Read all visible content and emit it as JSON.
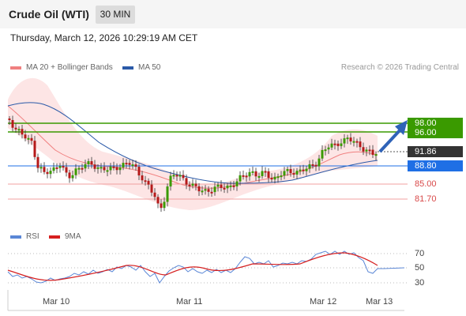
{
  "header": {
    "title": "Crude Oil (WTI)",
    "timeframe": "30 MIN"
  },
  "datetime": "Thursday, March 12, 2026 10:29:19 AM CET",
  "legend": {
    "ma20": {
      "label": "MA 20 + Bollinger Bands",
      "color": "#f08080"
    },
    "ma50": {
      "label": "MA 50",
      "color": "#2b5aa8"
    }
  },
  "credit": "Research © 2026 Trading Central",
  "chart_data": {
    "type": "line",
    "title": "Crude Oil (WTI)",
    "levels": {
      "resistance": [
        "98.00",
        "96.00"
      ],
      "current": "91.86",
      "pivot": "88.80",
      "support": [
        "85.00",
        "81.70"
      ]
    },
    "colors": {
      "resistance": "#3a9a00",
      "current": "#333333",
      "pivot": "#1f6fe5",
      "support": "#e87878"
    },
    "x_ticks": [
      "Mar 10",
      "Mar 11",
      "Mar 12",
      "Mar 13"
    ],
    "rsi": {
      "legend": [
        "RSI",
        "9MA"
      ],
      "colors": {
        "rsi": "#5b87d6",
        "ma9": "#d62020"
      },
      "ticks": [
        "70",
        "50",
        "30"
      ]
    }
  }
}
